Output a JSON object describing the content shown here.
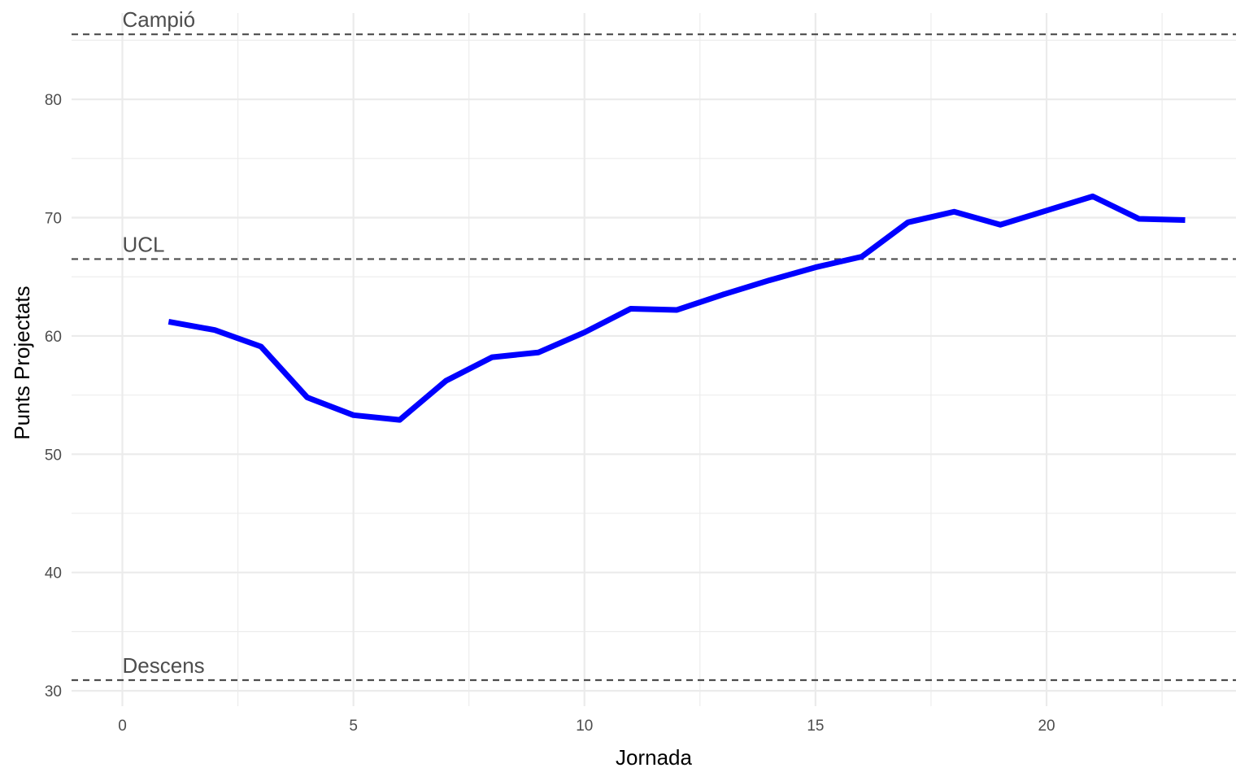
{
  "chart_data": {
    "type": "line",
    "title": "",
    "xlabel": "Jornada",
    "ylabel": "Punts Projectats",
    "xlim": [
      -1.1,
      24.1
    ],
    "ylim": [
      28.7,
      87.3
    ],
    "x_ticks": [
      0,
      5,
      10,
      15,
      20
    ],
    "y_ticks": [
      30,
      40,
      50,
      60,
      70,
      80
    ],
    "grid": true,
    "legend": "none",
    "series": [
      {
        "color": "#0000ff",
        "x": [
          1,
          2,
          3,
          4,
          5,
          6,
          7,
          8,
          9,
          10,
          11,
          12,
          13,
          14,
          15,
          16,
          17,
          18,
          19,
          20,
          21,
          22,
          23
        ],
        "y": [
          61.2,
          60.5,
          59.1,
          54.8,
          53.3,
          52.9,
          56.2,
          58.2,
          58.6,
          60.3,
          62.3,
          62.2,
          63.5,
          64.7,
          65.8,
          66.7,
          69.6,
          70.5,
          69.4,
          70.6,
          71.8,
          69.9,
          69.8
        ]
      }
    ],
    "reference_lines": [
      {
        "label": "Campió",
        "y": 85.5
      },
      {
        "label": "UCL",
        "y": 66.5
      },
      {
        "label": "Descens",
        "y": 30.9
      }
    ]
  }
}
